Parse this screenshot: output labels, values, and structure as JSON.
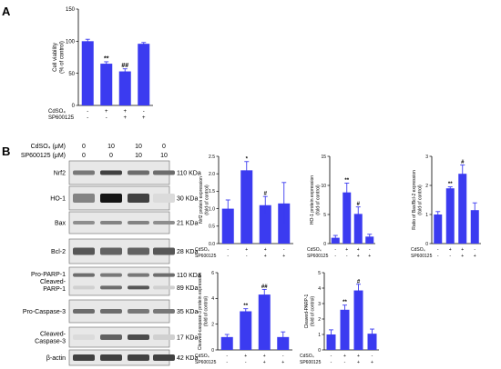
{
  "panel_labels": {
    "a": "A",
    "b": "B"
  },
  "bar_color": "#3b3bf0",
  "chart_data": [
    {
      "id": "viability",
      "type": "bar",
      "ylabel": "Cell viability\n(% of control)",
      "ylim": [
        0,
        150
      ],
      "yticks": [
        0,
        50,
        100,
        150
      ],
      "values": [
        100,
        65,
        53,
        96
      ],
      "errors": [
        3,
        3,
        4,
        2
      ],
      "marks": [
        "",
        "**",
        "##",
        ""
      ],
      "rows": [
        {
          "label": "CdSO₄",
          "signs": [
            "-",
            "+",
            "+",
            "-"
          ]
        },
        {
          "label": "SP600125",
          "signs": [
            "-",
            "-",
            "+",
            "+"
          ]
        }
      ]
    },
    {
      "id": "nrf2",
      "type": "bar",
      "ylabel": "Nrf2 protein expression\n(fold of control)",
      "ylim": [
        0,
        2.5
      ],
      "yticks": [
        0.0,
        0.5,
        1.0,
        1.5,
        2.0,
        2.5
      ],
      "values": [
        1.0,
        2.1,
        1.1,
        1.15
      ],
      "errors": [
        0.25,
        0.25,
        0.25,
        0.6
      ],
      "marks": [
        "",
        "*",
        "#",
        ""
      ],
      "rows": [
        {
          "label": "CdSO₄",
          "signs": [
            "-",
            "+",
            "+",
            "-"
          ]
        },
        {
          "label": "SP600125",
          "signs": [
            "-",
            "-",
            "+",
            "+"
          ]
        }
      ]
    },
    {
      "id": "ho1",
      "type": "bar",
      "ylabel": "HO-1 protein expression\n(fold of control)",
      "ylim": [
        0,
        15
      ],
      "yticks": [
        0,
        5,
        10,
        15
      ],
      "values": [
        1.0,
        8.8,
        5.1,
        1.2
      ],
      "errors": [
        0.4,
        1.6,
        1.2,
        0.4
      ],
      "marks": [
        "",
        "**",
        "#",
        ""
      ],
      "rows": [
        {
          "label": "CdSO₄",
          "signs": [
            "-",
            "+",
            "+",
            "-"
          ]
        },
        {
          "label": "SP600125",
          "signs": [
            "-",
            "-",
            "+",
            "+"
          ]
        }
      ]
    },
    {
      "id": "baxbcl2",
      "type": "bar",
      "ylabel": "Ratio of Bax/Bcl-2 expression\n(fold of control)",
      "ylim": [
        0,
        3
      ],
      "yticks": [
        0,
        1,
        2,
        3
      ],
      "values": [
        1.0,
        1.9,
        2.4,
        1.15
      ],
      "errors": [
        0.1,
        0.05,
        0.3,
        0.25
      ],
      "marks": [
        "",
        "**",
        "#",
        ""
      ],
      "rows": [
        {
          "label": "CdSO₄",
          "signs": [
            "-",
            "+",
            "+",
            "-"
          ]
        },
        {
          "label": "SP600125",
          "signs": [
            "-",
            "-",
            "+",
            "+"
          ]
        }
      ]
    },
    {
      "id": "casp3",
      "type": "bar",
      "ylabel": "Cleaved-caspase-3 protein expression\n(fold of control)",
      "ylim": [
        0,
        6
      ],
      "yticks": [
        0,
        2,
        4,
        6
      ],
      "values": [
        1.0,
        3.0,
        4.3,
        1.0
      ],
      "errors": [
        0.2,
        0.2,
        0.4,
        0.4
      ],
      "marks": [
        "",
        "**",
        "##",
        ""
      ],
      "rows": [
        {
          "label": "CdSO₄",
          "signs": [
            "-",
            "+",
            "+",
            "-"
          ]
        },
        {
          "label": "SP600125",
          "signs": [
            "-",
            "-",
            "+",
            "+"
          ]
        }
      ]
    },
    {
      "id": "parp",
      "type": "bar",
      "ylabel": "Cleaved-PARP-1\n(fold of control)",
      "ylim": [
        0,
        5
      ],
      "yticks": [
        0,
        1,
        2,
        3,
        4,
        5
      ],
      "values": [
        1.0,
        2.6,
        3.85,
        1.05
      ],
      "errors": [
        0.3,
        0.3,
        0.4,
        0.3
      ],
      "marks": [
        "",
        "**",
        "#",
        ""
      ],
      "rows": [
        {
          "label": "CdSO₄",
          "signs": [
            "-",
            "+",
            "+",
            "-"
          ]
        },
        {
          "label": "SP600125",
          "signs": [
            "-",
            "-",
            "+",
            "+"
          ]
        }
      ]
    }
  ],
  "blot": {
    "header_rows": [
      {
        "label": "CdSO₄ (μM)",
        "values": [
          "0",
          "10",
          "10",
          "0"
        ]
      },
      {
        "label": "SP600125 (μM)",
        "values": [
          "0",
          "0",
          "10",
          "10"
        ]
      }
    ],
    "bands": [
      {
        "name": "Nrf2",
        "kda": [
          "110 KDa"
        ]
      },
      {
        "name": "HO-1",
        "kda": [
          "30 KDa"
        ]
      },
      {
        "name": "Bax",
        "kda": [
          "21 KDa"
        ]
      },
      {
        "name": "Bcl-2",
        "kda": [
          "28 KDa"
        ]
      },
      {
        "name": "Pro-PARP-1\nCleaved-\nPARP-1",
        "kda": [
          "110 KDa",
          "89 KDa"
        ]
      },
      {
        "name": "Pro-Caspase-3",
        "kda": [
          "35 KDa"
        ]
      },
      {
        "name": "Cleaved-\nCaspase-3",
        "kda": [
          "17 KDa"
        ]
      },
      {
        "name": "β-actin",
        "kda": [
          "42 KDa"
        ]
      }
    ]
  }
}
